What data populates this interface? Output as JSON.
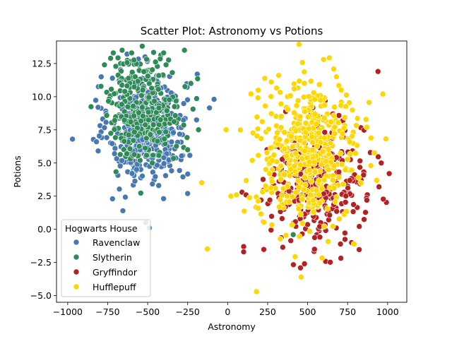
{
  "chart_data": {
    "type": "scatter",
    "title": "Scatter Plot: Astronomy vs Potions",
    "xlabel": "Astronomy",
    "ylabel": "Potions",
    "xlim": [
      -1070,
      1120
    ],
    "ylim": [
      -5.5,
      14.2
    ],
    "xticks": [
      -1000,
      -750,
      -500,
      -250,
      0,
      250,
      500,
      750,
      1000
    ],
    "yticks": [
      -5.0,
      -2.5,
      0.0,
      2.5,
      5.0,
      7.5,
      10.0,
      12.5
    ],
    "xtick_labels": [
      "−1000",
      "−750",
      "−500",
      "−250",
      "0",
      "250",
      "500",
      "750",
      "1000"
    ],
    "ytick_labels": [
      "−5.0",
      "−2.5",
      "0.0",
      "2.5",
      "5.0",
      "7.5",
      "10.0",
      "12.5"
    ],
    "grid": false,
    "legend": {
      "title": "Hogwarts House",
      "placement": "lower-left"
    },
    "series": [
      {
        "name": "Ravenclaw",
        "color": "#4878b0",
        "distribution": {
          "x_mean": -500,
          "x_sd": 120,
          "y_mean": 7.6,
          "y_sd": 2.0,
          "n": 470
        },
        "points": [
          {
            "x": -970,
            "y": 6.8
          },
          {
            "x": -810,
            "y": 9.2
          },
          {
            "x": -190,
            "y": 11.7
          },
          {
            "x": -85,
            "y": 9.8
          },
          {
            "x": -655,
            "y": 1.4
          },
          {
            "x": -510,
            "y": 0.5
          },
          {
            "x": -490,
            "y": 0.1
          },
          {
            "x": -720,
            "y": 2.3
          },
          {
            "x": -250,
            "y": 2.7
          },
          {
            "x": -820,
            "y": 6.6
          },
          {
            "x": 400,
            "y": 5.9
          },
          {
            "x": 545,
            "y": 6.2
          }
        ]
      },
      {
        "name": "Slytherin",
        "color": "#2e8b57",
        "distribution": {
          "x_mean": -520,
          "x_sd": 115,
          "y_mean": 9.3,
          "y_sd": 2.0,
          "n": 300
        },
        "points": [
          {
            "x": -715,
            "y": 13.3
          },
          {
            "x": -660,
            "y": 13.5
          },
          {
            "x": -600,
            "y": 13.3
          },
          {
            "x": -400,
            "y": 13.3
          },
          {
            "x": -270,
            "y": 13.5
          },
          {
            "x": -770,
            "y": 12.4
          },
          {
            "x": -230,
            "y": 11.0
          },
          {
            "x": -250,
            "y": 6.0
          },
          {
            "x": 410,
            "y": -0.4
          },
          {
            "x": 370,
            "y": 5.8
          }
        ]
      },
      {
        "name": "Gryffindor",
        "color": "#b22222",
        "distribution": {
          "x_mean": 555,
          "x_sd": 150,
          "y_mean": 3.5,
          "y_sd": 2.2,
          "n": 350
        },
        "points": [
          {
            "x": 940,
            "y": 11.9
          },
          {
            "x": 1010,
            "y": 4.2
          },
          {
            "x": 960,
            "y": 5.0
          },
          {
            "x": 100,
            "y": -1.3
          },
          {
            "x": 100,
            "y": -1.7
          },
          {
            "x": 90,
            "y": 2.8
          },
          {
            "x": 115,
            "y": 2.6
          },
          {
            "x": 870,
            "y": 2.2
          },
          {
            "x": 850,
            "y": 4.1
          },
          {
            "x": 775,
            "y": -1.0
          },
          {
            "x": 455,
            "y": -2.9
          },
          {
            "x": 480,
            "y": -2.6
          }
        ]
      },
      {
        "name": "Hufflepuff",
        "color": "#ffd700",
        "distribution": {
          "x_mean": 500,
          "x_sd": 160,
          "y_mean": 5.8,
          "y_sd": 2.6,
          "n": 470
        },
        "points": [
          {
            "x": 600,
            "y": 12.8
          },
          {
            "x": 970,
            "y": 10.2
          },
          {
            "x": -10,
            "y": 7.5
          },
          {
            "x": 180,
            "y": -4.7
          },
          {
            "x": 460,
            "y": -3.6
          },
          {
            "x": 680,
            "y": 11.5
          },
          {
            "x": 870,
            "y": 7.7
          },
          {
            "x": 55,
            "y": 2.6
          },
          {
            "x": 20,
            "y": 2.5
          },
          {
            "x": 235,
            "y": 9.3
          },
          {
            "x": 790,
            "y": -1.1
          },
          {
            "x": 710,
            "y": 10.5
          }
        ]
      }
    ]
  }
}
